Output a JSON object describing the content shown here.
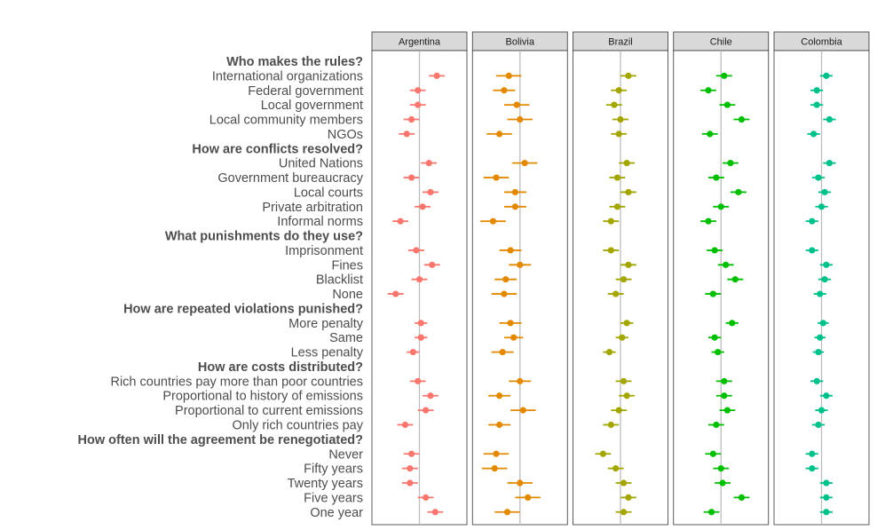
{
  "chart_data": {
    "type": "scatter",
    "subtype": "coefficient plot with confidence intervals, faceted",
    "reference_line": 0,
    "xlim": [
      -0.3,
      0.3
    ],
    "row_labels": [
      {
        "label": "Who makes the rules?",
        "header": true
      },
      {
        "label": "International organizations",
        "header": false
      },
      {
        "label": "Federal government",
        "header": false
      },
      {
        "label": "Local government",
        "header": false
      },
      {
        "label": "Local community members",
        "header": false
      },
      {
        "label": "NGOs",
        "header": false
      },
      {
        "label": "How are conflicts resolved?",
        "header": true
      },
      {
        "label": "United Nations",
        "header": false
      },
      {
        "label": "Government bureaucracy",
        "header": false
      },
      {
        "label": "Local courts",
        "header": false
      },
      {
        "label": "Private arbitration",
        "header": false
      },
      {
        "label": "Informal norms",
        "header": false
      },
      {
        "label": "What punishments do they use?",
        "header": true
      },
      {
        "label": "Imprisonment",
        "header": false
      },
      {
        "label": "Fines",
        "header": false
      },
      {
        "label": "Blacklist",
        "header": false
      },
      {
        "label": "None",
        "header": false
      },
      {
        "label": "How are repeated violations punished?",
        "header": true
      },
      {
        "label": "More penalty",
        "header": false
      },
      {
        "label": "Same",
        "header": false
      },
      {
        "label": "Less penalty",
        "header": false
      },
      {
        "label": "How are costs distributed?",
        "header": true
      },
      {
        "label": "Rich countries pay more than poor countries",
        "header": false
      },
      {
        "label": "Proportional to history of emissions",
        "header": false
      },
      {
        "label": "Proportional to current emissions",
        "header": false
      },
      {
        "label": "Only rich countries pay",
        "header": false
      },
      {
        "label": "How often will the agreement be renegotiated?",
        "header": true
      },
      {
        "label": "Never",
        "header": false
      },
      {
        "label": "Fifty years",
        "header": false
      },
      {
        "label": "Twenty years",
        "header": false
      },
      {
        "label": "Five years",
        "header": false
      },
      {
        "label": "One year",
        "header": false
      }
    ],
    "series": [
      {
        "name": "Argentina",
        "color": "#F8766D",
        "values": [
          null,
          0.11,
          -0.01,
          -0.01,
          -0.05,
          -0.08,
          null,
          0.06,
          -0.05,
          0.07,
          0.02,
          -0.12,
          null,
          -0.02,
          0.08,
          0.0,
          -0.15,
          null,
          0.01,
          0.01,
          -0.04,
          null,
          -0.01,
          0.07,
          0.04,
          -0.09,
          null,
          -0.05,
          -0.06,
          -0.06,
          0.04,
          0.1
        ],
        "ci": [
          null,
          0.05,
          0.05,
          0.05,
          0.05,
          0.05,
          null,
          0.05,
          0.05,
          0.05,
          0.05,
          0.05,
          null,
          0.05,
          0.05,
          0.05,
          0.05,
          null,
          0.04,
          0.04,
          0.04,
          null,
          0.05,
          0.05,
          0.05,
          0.05,
          null,
          0.05,
          0.05,
          0.05,
          0.05,
          0.05
        ]
      },
      {
        "name": "Bolivia",
        "color": "#E38900",
        "values": [
          null,
          -0.07,
          -0.1,
          -0.02,
          0.0,
          -0.13,
          null,
          0.03,
          -0.15,
          -0.03,
          -0.03,
          -0.17,
          null,
          -0.06,
          0.0,
          -0.09,
          -0.1,
          null,
          -0.06,
          -0.04,
          -0.11,
          null,
          0.0,
          -0.13,
          0.02,
          -0.13,
          null,
          -0.15,
          -0.16,
          0.0,
          0.05,
          -0.08
        ],
        "ci": [
          null,
          0.08,
          0.07,
          0.08,
          0.08,
          0.08,
          null,
          0.08,
          0.08,
          0.07,
          0.07,
          0.08,
          null,
          0.07,
          0.07,
          0.07,
          0.08,
          null,
          0.07,
          0.06,
          0.07,
          null,
          0.07,
          0.07,
          0.08,
          0.07,
          null,
          0.08,
          0.08,
          0.08,
          0.08,
          0.08
        ]
      },
      {
        "name": "Brazil",
        "color": "#A3A500",
        "values": [
          null,
          0.05,
          -0.01,
          -0.04,
          0.0,
          -0.01,
          null,
          0.04,
          -0.02,
          0.05,
          -0.02,
          -0.06,
          null,
          -0.06,
          0.05,
          0.02,
          -0.03,
          null,
          0.04,
          0.01,
          -0.07,
          null,
          0.02,
          0.04,
          -0.01,
          -0.06,
          null,
          -0.11,
          -0.03,
          0.02,
          0.05,
          0.02
        ],
        "ci": [
          null,
          0.05,
          0.05,
          0.05,
          0.05,
          0.05,
          null,
          0.05,
          0.05,
          0.05,
          0.05,
          0.05,
          null,
          0.05,
          0.05,
          0.05,
          0.05,
          null,
          0.04,
          0.04,
          0.04,
          null,
          0.05,
          0.05,
          0.05,
          0.05,
          null,
          0.05,
          0.05,
          0.05,
          0.05,
          0.05
        ]
      },
      {
        "name": "Chile",
        "color": "#00BF00",
        "values": [
          null,
          0.02,
          -0.08,
          0.04,
          0.13,
          -0.07,
          null,
          0.06,
          -0.03,
          0.11,
          0.0,
          -0.08,
          null,
          -0.04,
          0.03,
          0.09,
          -0.05,
          null,
          0.07,
          -0.04,
          -0.02,
          null,
          0.02,
          0.02,
          0.04,
          -0.03,
          null,
          -0.05,
          0.0,
          0.01,
          0.13,
          -0.06
        ],
        "ci": [
          null,
          0.05,
          0.05,
          0.05,
          0.05,
          0.05,
          null,
          0.05,
          0.05,
          0.05,
          0.05,
          0.05,
          null,
          0.05,
          0.05,
          0.05,
          0.05,
          null,
          0.04,
          0.04,
          0.04,
          null,
          0.05,
          0.05,
          0.05,
          0.05,
          null,
          0.05,
          0.05,
          0.05,
          0.05,
          0.05
        ]
      },
      {
        "name": "Colombia",
        "color": "#00C08B",
        "values": [
          null,
          0.03,
          -0.03,
          -0.03,
          0.05,
          -0.05,
          null,
          0.05,
          -0.02,
          0.02,
          0.0,
          -0.06,
          null,
          -0.06,
          0.03,
          0.02,
          -0.01,
          null,
          0.01,
          -0.01,
          -0.02,
          null,
          -0.03,
          0.03,
          0.0,
          -0.02,
          null,
          -0.06,
          -0.06,
          0.03,
          0.03,
          0.03
        ],
        "ci": [
          null,
          0.04,
          0.04,
          0.04,
          0.04,
          0.04,
          null,
          0.04,
          0.04,
          0.04,
          0.04,
          0.04,
          null,
          0.04,
          0.04,
          0.04,
          0.04,
          null,
          0.035,
          0.035,
          0.035,
          null,
          0.04,
          0.04,
          0.04,
          0.04,
          null,
          0.04,
          0.04,
          0.04,
          0.04,
          0.04
        ]
      }
    ],
    "grid": false,
    "legend": "none"
  }
}
